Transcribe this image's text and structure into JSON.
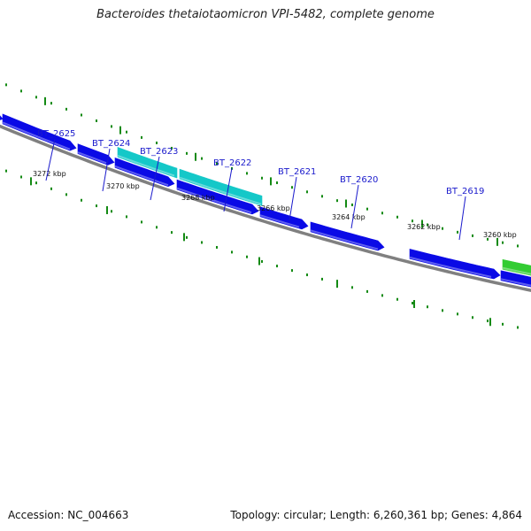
{
  "title": "Bacteroides thetaiotaomicron VPI-5482, complete genome",
  "footer": {
    "accession": "Accession: NC_004663",
    "summary": "Topology: circular; Length: 6,260,361 bp; Genes: 4,864"
  },
  "colors": {
    "cds": "#0a0ae6",
    "cds_highlight": "#14c8c8",
    "cds_green": "#33cc33",
    "backbone": "#808080",
    "tick": "#138a13",
    "label": "#1a1acc"
  },
  "gene_labels": [
    "BT_2625",
    "BT_2624",
    "BT_2623",
    "BT_2622",
    "BT_2621",
    "BT_2620",
    "BT_2619"
  ],
  "scale_labels": [
    "3272 kbp",
    "3270 kbp",
    "3268 kbp",
    "3266 kbp",
    "3264 kbp",
    "3262 kbp",
    "3260 kbp"
  ]
}
